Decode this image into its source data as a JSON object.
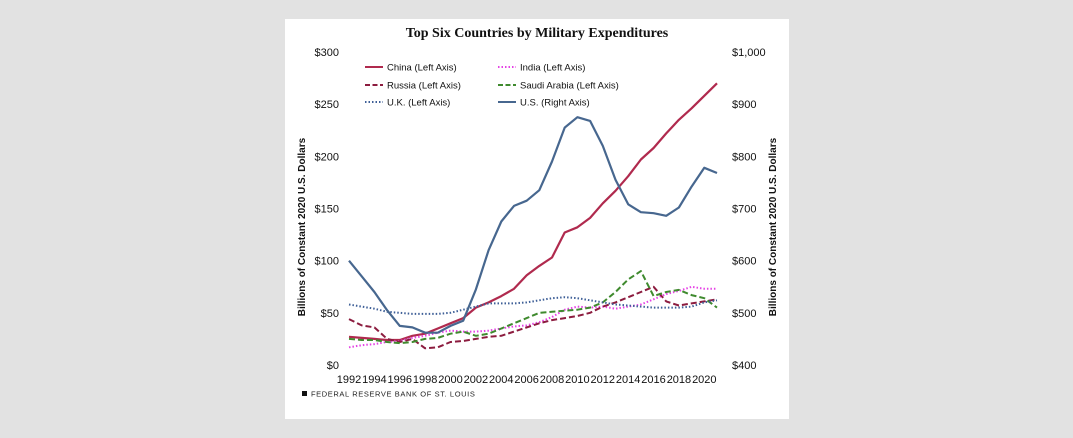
{
  "chart_data": {
    "type": "line",
    "title": "Top Six Countries by Military Expenditures",
    "ylabel": "Billions of Constant  2020 U.S. Dollars",
    "ylabel_right": "Billions of Constant  2020 U.S. Dollars",
    "xlabel": "",
    "ylim": [
      0,
      300
    ],
    "ylim_right": [
      400,
      1000
    ],
    "yticks": [
      "$0",
      "$50",
      "$100",
      "$150",
      "$200",
      "$250",
      "$300"
    ],
    "yticks_right": [
      "$400",
      "$500",
      "$600",
      "$700",
      "$800",
      "$900",
      "$1,000"
    ],
    "xticks": [
      "1992",
      "1994",
      "1996",
      "1998",
      "2000",
      "2002",
      "2004",
      "2006",
      "2008",
      "2010",
      "2012",
      "2014",
      "2016",
      "2018",
      "2020"
    ],
    "x": [
      1992,
      1993,
      1994,
      1995,
      1996,
      1997,
      1998,
      1999,
      2000,
      2001,
      2002,
      2003,
      2004,
      2005,
      2006,
      2007,
      2008,
      2009,
      2010,
      2011,
      2012,
      2013,
      2014,
      2015,
      2016,
      2017,
      2018,
      2019,
      2020,
      2021
    ],
    "legend_position": "top-left",
    "series": [
      {
        "name": "China (Left Axis)",
        "axis": "left",
        "color": "#b02a4e",
        "dash": "solid",
        "values": [
          27,
          26,
          25,
          24,
          24,
          28,
          30,
          35,
          40,
          45,
          55,
          60,
          66,
          73,
          86,
          95,
          103,
          127,
          132,
          141,
          155,
          167,
          181,
          197,
          208,
          222,
          235,
          246,
          258,
          270
        ]
      },
      {
        "name": "India (Left Axis)",
        "axis": "left",
        "color": "#e542e5",
        "dash": "dotted",
        "values": [
          17,
          19,
          20,
          22,
          23,
          26,
          28,
          31,
          33,
          32,
          32,
          33,
          35,
          37,
          38,
          41,
          46,
          53,
          56,
          55,
          56,
          54,
          56,
          58,
          63,
          68,
          71,
          75,
          73,
          73
        ]
      },
      {
        "name": "Russia (Left Axis)",
        "axis": "left",
        "color": "#8c1c3f",
        "dash": "dashed",
        "values": [
          44,
          38,
          36,
          25,
          22,
          25,
          16,
          17,
          22,
          23,
          25,
          27,
          28,
          32,
          36,
          40,
          43,
          45,
          47,
          50,
          56,
          60,
          65,
          70,
          75,
          61,
          57,
          59,
          61,
          63
        ]
      },
      {
        "name": "Saudi Arabia (Left Axis)",
        "axis": "left",
        "color": "#3f8a2e",
        "dash": "dashed",
        "values": [
          25,
          24,
          24,
          22,
          21,
          22,
          25,
          26,
          30,
          32,
          28,
          30,
          35,
          40,
          45,
          50,
          51,
          52,
          53,
          55,
          60,
          70,
          82,
          90,
          66,
          70,
          72,
          67,
          64,
          55
        ]
      },
      {
        "name": "U.K. (Left Axis)",
        "axis": "left",
        "color": "#3e5f97",
        "dash": "dotted",
        "values": [
          58,
          56,
          54,
          51,
          50,
          49,
          49,
          49,
          50,
          53,
          56,
          59,
          59,
          59,
          60,
          62,
          64,
          65,
          64,
          62,
          60,
          58,
          57,
          56,
          55,
          55,
          55,
          56,
          60,
          62
        ]
      },
      {
        "name": "U.S. (Right Axis)",
        "axis": "right",
        "color": "#47678f",
        "dash": "solid",
        "values": [
          600,
          570,
          540,
          505,
          475,
          472,
          462,
          462,
          475,
          485,
          545,
          620,
          675,
          705,
          715,
          735,
          790,
          855,
          875,
          868,
          820,
          755,
          708,
          693,
          691,
          686,
          702,
          742,
          778,
          768
        ]
      }
    ]
  },
  "source": "FEDERAL RESERVE BANK OF ST. LOUIS"
}
